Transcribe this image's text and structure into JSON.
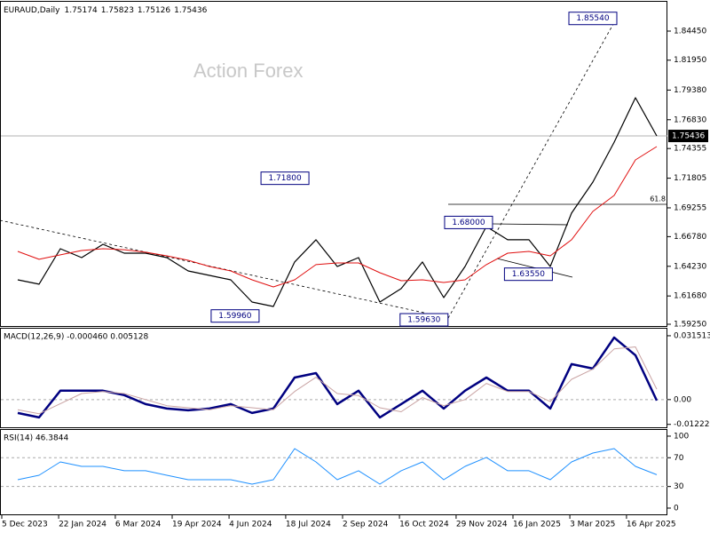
{
  "header": {
    "symbol": "EURAUD,Daily",
    "ohlc": [
      1.75174,
      1.75823,
      1.75126,
      1.75436
    ]
  },
  "watermark": "Action Forex",
  "x_axis": {
    "xlim": [
      -0.8333,
      30.5
    ],
    "xticks": [
      {
        "value": -0.75,
        "label": "5 Dec 2023"
      },
      {
        "value": 1.92,
        "label": "22 Jan 2024"
      },
      {
        "value": 4.58,
        "label": "6 Mar 2024"
      },
      {
        "value": 7.25,
        "label": "19 Apr 2024"
      },
      {
        "value": 9.92,
        "label": "4 Jun 2024"
      },
      {
        "value": 12.58,
        "label": "18 Jul 2024"
      },
      {
        "value": 15.25,
        "label": "2 Sep 2024"
      },
      {
        "value": 17.92,
        "label": "16 Oct 2024"
      },
      {
        "value": 20.58,
        "label": "29 Nov 2024"
      },
      {
        "value": 23.25,
        "label": "16 Jan 2025"
      },
      {
        "value": 25.92,
        "label": "3 Mar 2025"
      },
      {
        "value": 28.58,
        "label": "16 Apr 2025"
      }
    ]
  },
  "chart_data": [
    {
      "type": "line",
      "x": [
        0,
        1,
        2,
        3,
        4,
        5,
        6,
        7,
        8,
        9,
        10,
        11,
        12,
        13,
        14,
        15,
        16,
        17,
        18,
        19,
        20,
        21,
        22,
        23,
        24,
        25,
        26,
        27,
        28,
        29,
        30
      ],
      "series": [
        {
          "color": "#000000",
          "width": 1.2,
          "values": [
            1.6307,
            1.6269,
            1.6574,
            1.6498,
            1.6612,
            1.6536,
            1.6536,
            1.6498,
            1.6383,
            1.6345,
            1.6307,
            1.6116,
            1.6078,
            1.646,
            1.6651,
            1.6421,
            1.6498,
            1.6116,
            1.6231,
            1.646,
            1.6154,
            1.6421,
            1.6765,
            1.6651,
            1.6651,
            1.6421,
            1.688,
            1.7147,
            1.749,
            1.7872,
            1.75436
          ]
        },
        {
          "color": "#e01010",
          "width": 1,
          "values": [
            1.6551,
            1.6483,
            1.6521,
            1.6559,
            1.6574,
            1.6566,
            1.6544,
            1.6513,
            1.6475,
            1.6421,
            1.6383,
            1.6307,
            1.6246,
            1.6307,
            1.6437,
            1.6452,
            1.6452,
            1.6368,
            1.6299,
            1.6307,
            1.6284,
            1.6307,
            1.6437,
            1.6536,
            1.6551,
            1.6513,
            1.6651,
            1.6895,
            1.7032,
            1.7338,
            1.7452
          ]
        }
      ],
      "ylim": [
        1.5902,
        1.8697
      ],
      "yticks": [
        {
          "value": 1.8445,
          "label": "1.84450"
        },
        {
          "value": 1.8195,
          "label": "1.81950"
        },
        {
          "value": 1.7938,
          "label": "1.79380"
        },
        {
          "value": 1.7683,
          "label": "1.76830"
        },
        1.74355,
        {
          "value": 1.71805,
          "label": "1.71805"
        },
        1.69255,
        {
          "value": 1.6678,
          "label": "1.66780"
        },
        {
          "value": 1.6423,
          "label": "1.64230"
        },
        {
          "value": 1.6168,
          "label": "1.61680"
        },
        {
          "value": 1.5925,
          "label": "1.59250"
        }
      ],
      "last_price": {
        "value": 1.75436,
        "label": "1.75436"
      },
      "fib": {
        "value": 1.6956,
        "label": "61.8"
      },
      "annotations": [
        {
          "value": 1.8554,
          "label": "1.85540",
          "x": 28.125
        },
        {
          "value": 1.718,
          "label": "1.71800",
          "x": 13.67
        },
        {
          "value": 1.68,
          "label": "1.68000",
          "x": 22.29
        },
        {
          "value": 1.6355,
          "label": "1.63550",
          "x": 25.1
        },
        {
          "value": 1.5996,
          "label": "1.59960",
          "x": 11.33
        },
        {
          "value": 1.5963,
          "label": "1.59630",
          "x": 20.2
        }
      ]
    },
    {
      "type": "line",
      "title": "MACD(12,26,9) -0.000460 0.005128",
      "x": [
        0,
        1,
        2,
        3,
        4,
        5,
        6,
        7,
        8,
        9,
        10,
        11,
        12,
        13,
        14,
        15,
        16,
        17,
        18,
        19,
        20,
        21,
        22,
        23,
        24,
        25,
        26,
        27,
        28,
        29,
        30
      ],
      "series": [
        {
          "color": "#000080",
          "width": 2.5,
          "values": [
            -0.0066,
            -0.0088,
            0.0044,
            0.0044,
            0.0044,
            0.0022,
            -0.0022,
            -0.0044,
            -0.0053,
            -0.0044,
            -0.0022,
            -0.0066,
            -0.0044,
            0.0109,
            0.0131,
            -0.0022,
            0.0044,
            -0.0088,
            -0.0022,
            0.0044,
            -0.0044,
            0.0044,
            0.0109,
            0.0044,
            0.0044,
            -0.0044,
            0.0175,
            0.0153,
            0.0306,
            0.0219,
            -0.00046
          ]
        },
        {
          "color": "#c9a3a3",
          "width": 1,
          "values": [
            -0.005,
            -0.007,
            -0.002,
            0.003,
            0.004,
            0.003,
            0.0,
            -0.003,
            -0.004,
            -0.005,
            -0.003,
            -0.004,
            -0.005,
            0.004,
            0.011,
            0.003,
            0.002,
            -0.004,
            -0.006,
            0.001,
            -0.003,
            0.0,
            0.008,
            0.004,
            0.004,
            -0.001,
            0.01,
            0.015,
            0.025,
            0.026,
            0.005128
          ]
        }
      ],
      "ylim": [
        -0.0141,
        0.035
      ],
      "yticks": [
        0.031513,
        {
          "value": 0,
          "label": "0.00"
        },
        -0.012223
      ],
      "dashed_levels": [
        0
      ]
    },
    {
      "type": "line",
      "title": "RSI(14) 46.3844",
      "x": [
        0,
        1,
        2,
        3,
        4,
        5,
        6,
        7,
        8,
        9,
        10,
        11,
        12,
        13,
        14,
        15,
        16,
        17,
        18,
        19,
        20,
        21,
        22,
        23,
        24,
        25,
        26,
        27,
        28,
        29,
        30
      ],
      "series": [
        {
          "color": "#1e90ff",
          "width": 1,
          "values": [
            39.5,
            45.7,
            64.2,
            58.0,
            58.0,
            51.9,
            51.9,
            45.7,
            39.5,
            39.5,
            39.5,
            33.3,
            39.5,
            82.7,
            64.2,
            39.5,
            51.9,
            33.3,
            51.9,
            64.2,
            39.5,
            58.0,
            70.4,
            51.9,
            51.9,
            39.5,
            64.2,
            76.5,
            82.7,
            58.0,
            46.3844
          ]
        }
      ],
      "ylim": [
        -9.9,
        108.6
      ],
      "yticks": [
        100,
        70,
        30,
        0
      ],
      "dashed_levels": [
        70,
        30
      ]
    }
  ]
}
